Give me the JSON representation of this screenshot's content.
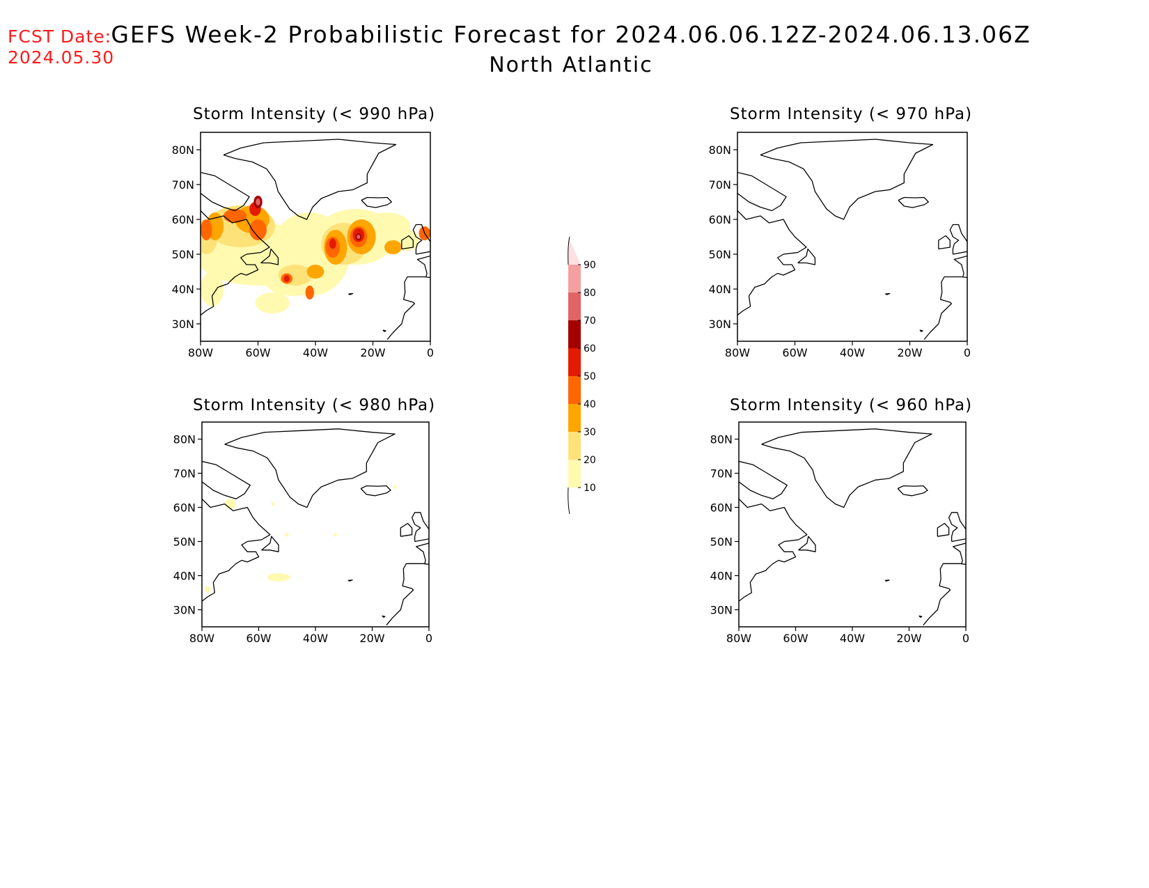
{
  "header": {
    "fcst_label": "FCST Date:",
    "fcst_date": "2024.05.30",
    "title": "GEFS Week-2 Probabilistic Forecast for 2024.06.06.12Z-2024.06.13.06Z",
    "subtitle": "North Atlantic"
  },
  "axes": {
    "lat_labels": [
      "80N",
      "70N",
      "60N",
      "50N",
      "40N",
      "30N"
    ],
    "lon_labels": [
      "80W",
      "60W",
      "40W",
      "20W",
      "0"
    ]
  },
  "panels": [
    {
      "id": "p990",
      "title": "Storm Intensity (< 990 hPa)"
    },
    {
      "id": "p970",
      "title": "Storm Intensity (< 970 hPa)"
    },
    {
      "id": "p980",
      "title": "Storm Intensity (< 980 hPa)"
    },
    {
      "id": "p960",
      "title": "Storm Intensity (< 960 hPa)"
    }
  ],
  "colorbar": {
    "levels": [
      "10",
      "20",
      "30",
      "40",
      "50",
      "60",
      "70",
      "80",
      "90"
    ],
    "colors": [
      "#fffab0",
      "#fde27a",
      "#ffa500",
      "#ff6600",
      "#e31a00",
      "#a50000",
      "#e06464",
      "#f5a0a0",
      "#fde0e4"
    ]
  }
}
